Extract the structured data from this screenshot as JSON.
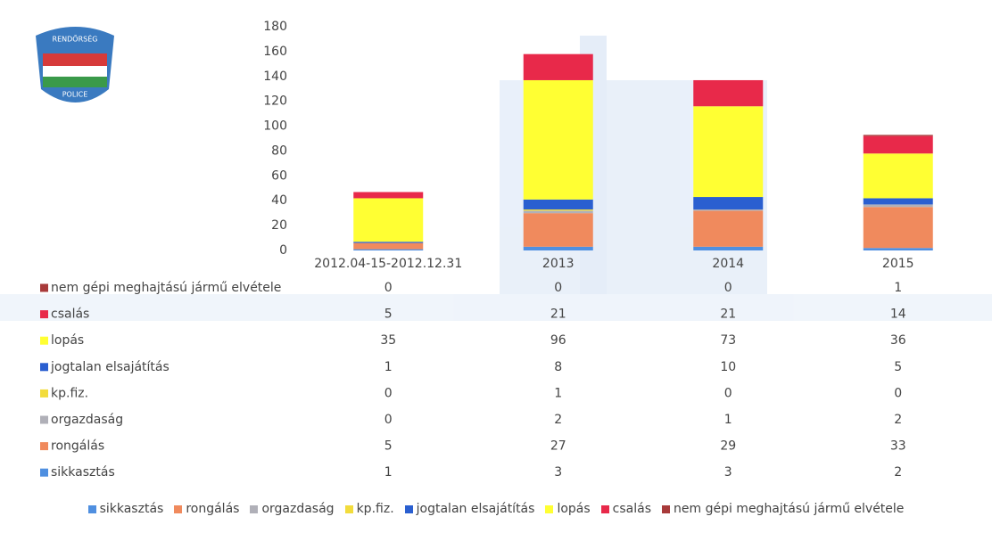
{
  "logo": {
    "top": "RENDŐRSÉG",
    "bottom": "POLICE"
  },
  "chart_data": {
    "type": "bar",
    "stacked": true,
    "categories": [
      "2012.04-15-2012.12.31",
      "2013",
      "2014",
      "2015"
    ],
    "ylim": [
      0,
      180
    ],
    "yticks": [
      0,
      20,
      40,
      60,
      80,
      100,
      120,
      140,
      160,
      180
    ],
    "series": [
      {
        "name": "sikkasztás",
        "color": "#4f8fe0",
        "values": [
          1,
          3,
          3,
          2
        ]
      },
      {
        "name": "rongálás",
        "color": "#f08a5d",
        "values": [
          5,
          27,
          29,
          33
        ]
      },
      {
        "name": "orgazdaság",
        "color": "#b0b0b8",
        "values": [
          0,
          2,
          1,
          2
        ]
      },
      {
        "name": "kp.fiz.",
        "color": "#f2dc3c",
        "values": [
          0,
          1,
          0,
          0
        ]
      },
      {
        "name": "jogtalan elsajátítás",
        "color": "#2a5fd0",
        "values": [
          1,
          8,
          10,
          5
        ]
      },
      {
        "name": "lopás",
        "color": "#ffff33",
        "values": [
          35,
          96,
          73,
          36
        ]
      },
      {
        "name": "csalás",
        "color": "#e8294a",
        "values": [
          5,
          21,
          21,
          14
        ]
      },
      {
        "name": "nem gépi meghajtású jármű elvétele",
        "color": "#a83a3a",
        "values": [
          0,
          0,
          0,
          1
        ]
      }
    ]
  }
}
